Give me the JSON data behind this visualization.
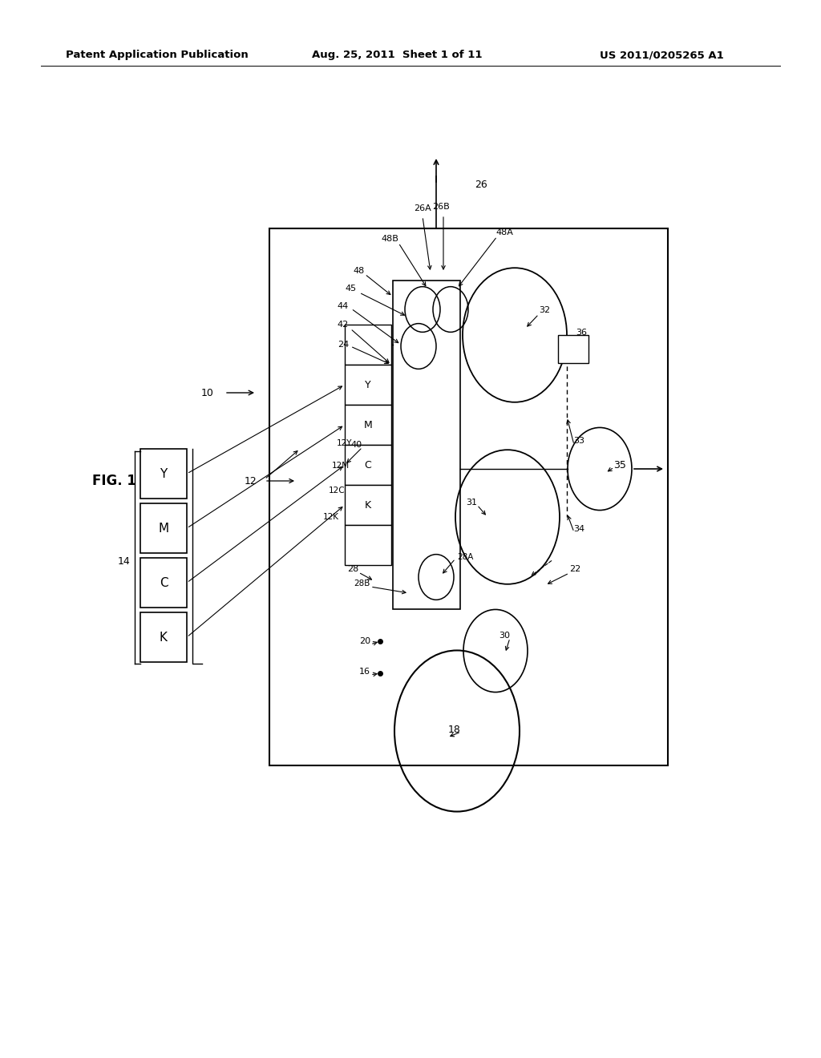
{
  "bg_color": "#ffffff",
  "header_left": "Patent Application Publication",
  "header_mid": "Aug. 25, 2011  Sheet 1 of 11",
  "header_right": "US 2011/0205265 A1",
  "fig_label": "FIG. 1"
}
